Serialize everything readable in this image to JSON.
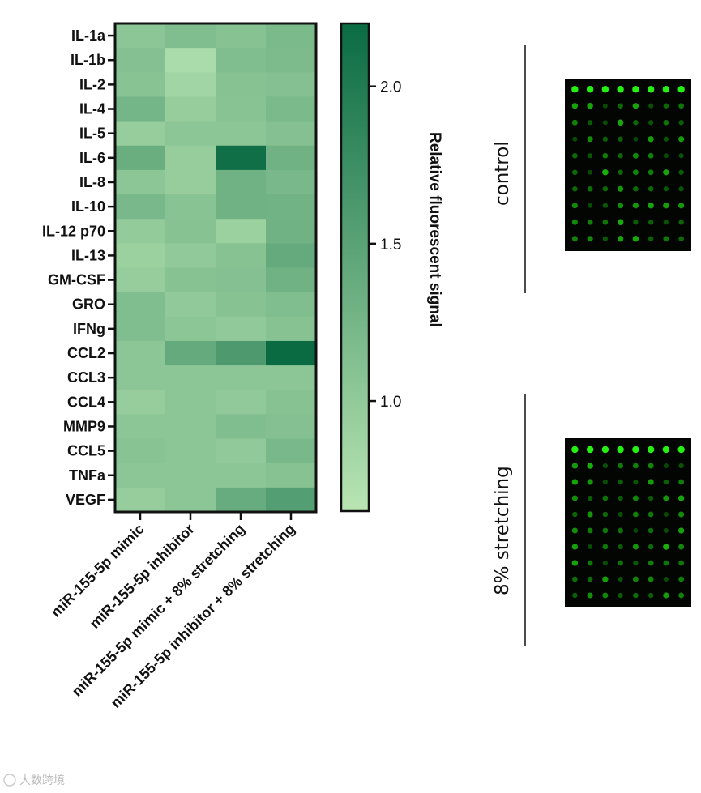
{
  "chart_data": {
    "type": "heatmap",
    "rows": [
      "IL-1a",
      "IL-1b",
      "IL-2",
      "IL-4",
      "IL-5",
      "IL-6",
      "IL-8",
      "IL-10",
      "IL-12 p70",
      "IL-13",
      "GM-CSF",
      "GRO",
      "IFNg",
      "CCL2",
      "CCL3",
      "CCL4",
      "MMP9",
      "CCL5",
      "TNFa",
      "VEGF"
    ],
    "columns": [
      "miR-155-5p mimic",
      "miR-155-5p inhibitor",
      "miR-155-5p mimic + 8% stretching",
      "miR-155-5p inhibitor + 8% stretching"
    ],
    "values": [
      [
        1.05,
        1.15,
        1.1,
        1.2
      ],
      [
        1.12,
        0.78,
        1.15,
        1.18
      ],
      [
        1.08,
        0.85,
        1.1,
        1.12
      ],
      [
        1.25,
        0.95,
        1.08,
        1.2
      ],
      [
        0.95,
        1.05,
        1.05,
        1.12
      ],
      [
        1.35,
        0.95,
        2.15,
        1.3
      ],
      [
        1.05,
        0.95,
        1.3,
        1.22
      ],
      [
        1.22,
        1.08,
        1.3,
        1.28
      ],
      [
        0.98,
        1.1,
        0.92,
        1.3
      ],
      [
        0.92,
        1.0,
        1.1,
        1.4
      ],
      [
        0.95,
        1.1,
        1.12,
        1.3
      ],
      [
        1.15,
        1.0,
        1.1,
        1.15
      ],
      [
        1.15,
        1.05,
        1.0,
        1.1
      ],
      [
        1.05,
        1.4,
        1.6,
        2.2
      ],
      [
        1.05,
        1.05,
        1.05,
        1.05
      ],
      [
        0.95,
        1.05,
        1.0,
        1.1
      ],
      [
        1.05,
        1.05,
        1.15,
        1.12
      ],
      [
        1.08,
        1.05,
        1.0,
        1.22
      ],
      [
        1.05,
        1.05,
        1.05,
        1.1
      ],
      [
        0.95,
        1.05,
        1.38,
        1.55
      ]
    ],
    "colorbar": {
      "label": "Relative fluorescent signal",
      "min": 0.65,
      "max": 2.2,
      "ticks": [
        1.0,
        1.5,
        2.0
      ],
      "tick_labels": [
        "1.0",
        "1.5",
        "2.0"
      ],
      "color_low": "#b9e5b3",
      "color_high": "#0a6b43"
    }
  },
  "panels": [
    {
      "title": "control",
      "dots_rows": 10,
      "dots_cols": 8
    },
    {
      "title": "8% stretching",
      "dots_rows": 10,
      "dots_cols": 8
    }
  ],
  "watermark": "大数跨境"
}
